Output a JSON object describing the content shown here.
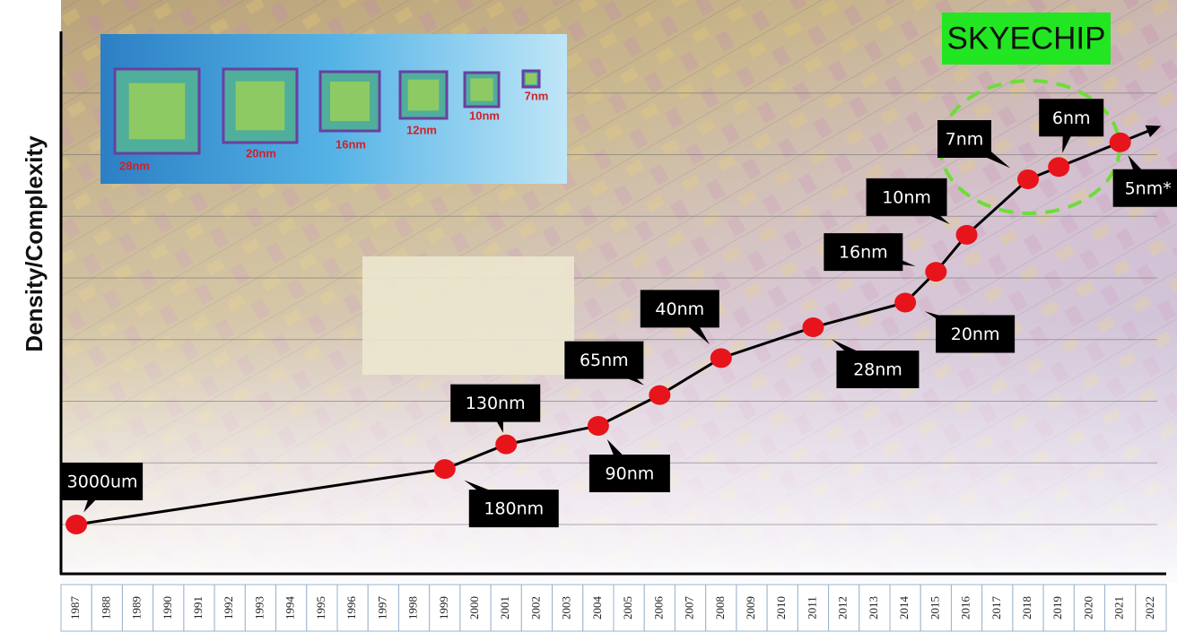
{
  "chart_data": {
    "type": "line",
    "y_label": "Density/Complexity",
    "x": [
      1987,
      1999,
      2001,
      2004,
      2006,
      2008,
      2011,
      2014,
      2015,
      2016,
      2018,
      2019,
      2021
    ],
    "values": [
      0,
      0.9,
      1.3,
      1.6,
      2.1,
      2.7,
      3.2,
      3.6,
      4.1,
      4.7,
      5.6,
      5.8,
      6.2
    ],
    "point_labels": [
      "3000um",
      "180nm",
      "130nm",
      "90nm",
      "65nm",
      "40nm",
      "28nm",
      "20nm",
      "16nm",
      "10nm",
      "7nm",
      "6nm",
      "5nm*"
    ],
    "color": "#e8141c",
    "line_color": "#000000",
    "xlim": [
      1986.5,
      2022.5
    ],
    "xticks": [
      1987,
      1988,
      1989,
      1990,
      1991,
      1992,
      1993,
      1994,
      1995,
      1996,
      1997,
      1998,
      1999,
      2000,
      2001,
      2002,
      2003,
      2004,
      2005,
      2006,
      2007,
      2008,
      2009,
      2010,
      2011,
      2012,
      2013,
      2014,
      2015,
      2016,
      2017,
      2018,
      2019,
      2020,
      2021,
      2022
    ],
    "ylim": [
      -0.8,
      8
    ],
    "ygrid": [
      0,
      1,
      2,
      3,
      4,
      5,
      6,
      7
    ],
    "highlight": "SKYECHIP",
    "inset_labels": [
      "28nm",
      "20nm",
      "16nm",
      "12nm",
      "10nm",
      "7nm"
    ]
  }
}
